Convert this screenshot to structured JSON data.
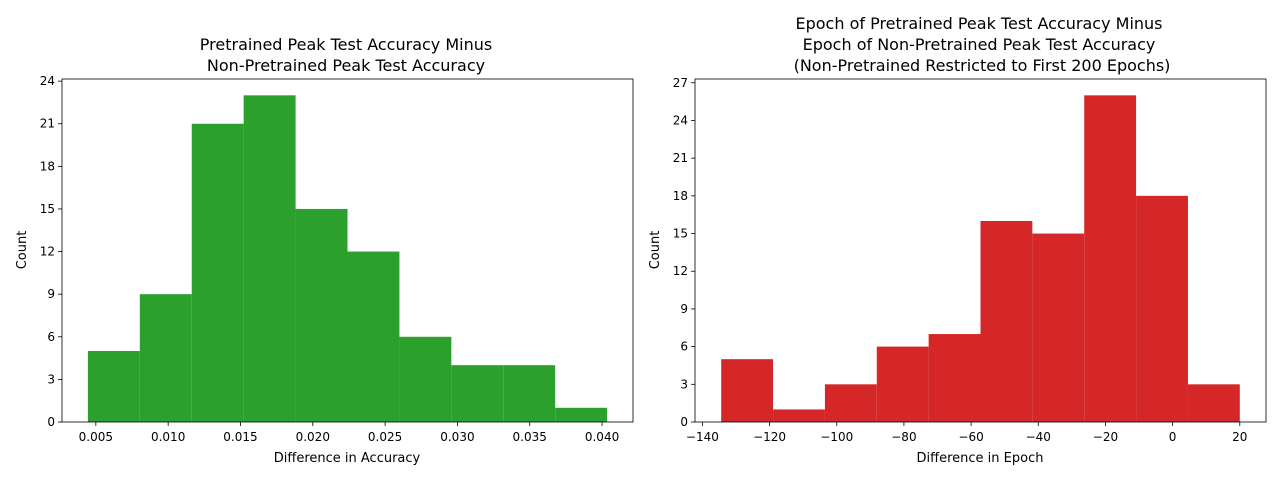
{
  "chart_data": [
    {
      "type": "bar",
      "title_lines": [
        "Pretrained Peak Test Accuracy Minus",
        "Non-Pretrained Peak Test Accuracy"
      ],
      "xlabel": "Difference in Accuracy",
      "ylabel": "Count",
      "color": "#2ca02c",
      "bin_edges": [
        0.00445,
        0.00804,
        0.01163,
        0.01522,
        0.01881,
        0.0224,
        0.02599,
        0.02958,
        0.03317,
        0.03676,
        0.04035
      ],
      "values": [
        5,
        9,
        21,
        23,
        15,
        12,
        6,
        4,
        4,
        1
      ],
      "xlim": [
        0.00266,
        0.04214
      ],
      "ylim": [
        0,
        24.15
      ],
      "xticks": [
        0.005,
        0.01,
        0.015,
        0.02,
        0.025,
        0.03,
        0.035,
        0.04
      ],
      "xtick_labels": [
        "0.005",
        "0.010",
        "0.015",
        "0.020",
        "0.025",
        "0.030",
        "0.035",
        "0.040"
      ],
      "yticks": [
        0,
        3,
        6,
        9,
        12,
        15,
        18,
        21,
        24
      ],
      "ytick_labels": [
        "0",
        "3",
        "6",
        "9",
        "12",
        "15",
        "18",
        "21",
        "24"
      ]
    },
    {
      "type": "bar",
      "title_lines": [
        "Epoch of Pretrained Peak Test Accuracy Minus",
        "Epoch of Non-Pretrained Peak Test Accuracy",
        "(Non-Pretrained Restricted to First 200 Epochs)"
      ],
      "xlabel": "Difference in Epoch",
      "ylabel": "Count",
      "color": "#d62728",
      "bin_edges": [
        -134.4,
        -118.96,
        -103.52,
        -88.08,
        -72.64,
        -57.2,
        -41.76,
        -26.32,
        -10.88,
        4.56,
        20.0
      ],
      "values": [
        5,
        1,
        3,
        6,
        7,
        16,
        15,
        26,
        18,
        3
      ],
      "xlim": [
        -142.2,
        27.8
      ],
      "ylim": [
        0,
        27.3
      ],
      "xticks": [
        -140,
        -120,
        -100,
        -80,
        -60,
        -40,
        -20,
        0,
        20
      ],
      "xtick_labels": [
        "−140",
        "−120",
        "−100",
        "−80",
        "−60",
        "−40",
        "−20",
        "0",
        "20"
      ],
      "yticks": [
        0,
        3,
        6,
        9,
        12,
        15,
        18,
        21,
        24,
        27
      ],
      "ytick_labels": [
        "0",
        "3",
        "6",
        "9",
        "12",
        "15",
        "18",
        "21",
        "24",
        "27"
      ]
    }
  ]
}
